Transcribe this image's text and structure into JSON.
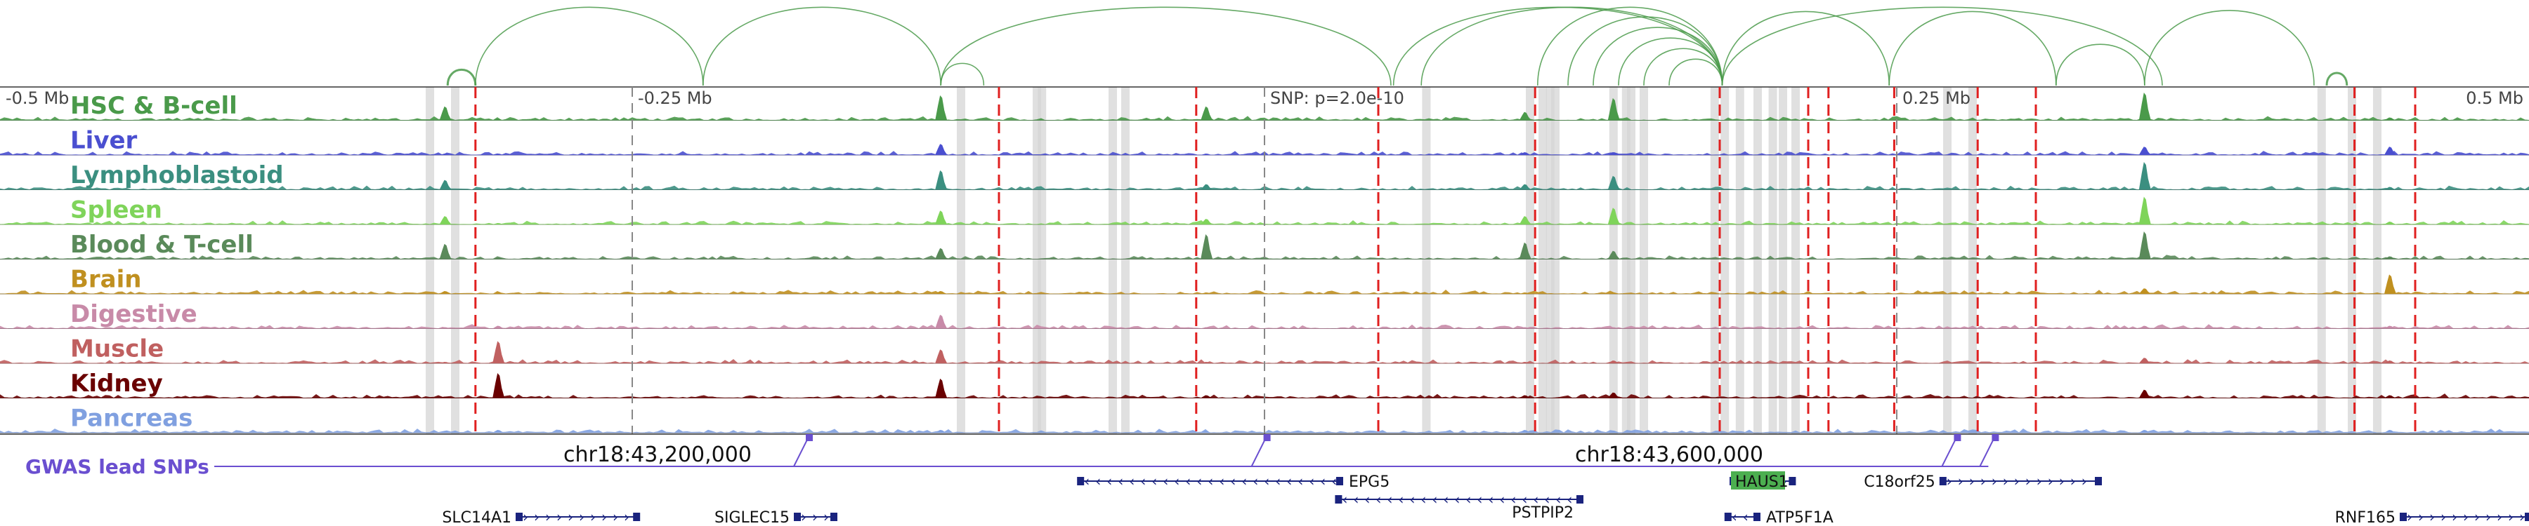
{
  "chart_data": {
    "type": "area",
    "region": {
      "chrom": "chr18",
      "start": 42940000,
      "end": 43940000
    },
    "scale_ticks": [
      {
        "pos": 42940000,
        "label": "-0.5 Mb"
      },
      {
        "pos": 43190000,
        "label": "-0.25 Mb"
      },
      {
        "pos": 43440000,
        "label": "SNP: p=2.0e-10"
      },
      {
        "pos": 43690000,
        "label": "0.25 Mb"
      },
      {
        "pos": 43940000,
        "label": "0.5 Mb"
      }
    ],
    "coord_labels": [
      {
        "pos": 43200000,
        "label": "chr18:43,200,000"
      },
      {
        "pos": 43600000,
        "label": "chr18:43,600,000"
      }
    ],
    "tracks": [
      {
        "name": "HSC & B-cell",
        "color": "#4a9a4a"
      },
      {
        "name": "Liver",
        "color": "#4a4fd0"
      },
      {
        "name": "Lymphoblastoid",
        "color": "#3b8f80"
      },
      {
        "name": "Spleen",
        "color": "#7fd45a"
      },
      {
        "name": "Blood & T-cell",
        "color": "#5a8a5a"
      },
      {
        "name": "Brain",
        "color": "#c09020"
      },
      {
        "name": "Digestive",
        "color": "#c88aa8"
      },
      {
        "name": "Muscle",
        "color": "#c06060"
      },
      {
        "name": "Kidney",
        "color": "#6a0000"
      },
      {
        "name": "Pancreas",
        "color": "#80a0e0"
      }
    ],
    "highlight_columns": [
      43110000,
      43120000,
      43320000,
      43350000,
      43352000,
      43380000,
      43385000,
      43504000,
      43545000,
      43550000,
      43553000,
      43555000,
      43578000,
      43583000,
      43585000,
      43590000,
      43618000,
      43622000,
      43628000,
      43635000,
      43641000,
      43645000,
      43650000,
      43710000,
      43720000,
      43858000,
      43870000,
      43880000
    ],
    "red_dashed_lines": [
      43128000,
      43335000,
      43413000,
      43485000,
      43547000,
      43620000,
      43655000,
      43663000,
      43689000,
      43722000,
      43745000,
      43871000,
      43895000
    ],
    "gray_dashed_lines": [
      43190000,
      43440000,
      43690000
    ],
    "peaks": [
      {
        "pos": 43116000,
        "h": [
          0.5,
          0.05,
          0.35,
          0.3,
          0.55,
          0.1,
          0.05,
          0.05,
          0.05,
          0.05
        ]
      },
      {
        "pos": 43137000,
        "h": [
          0.05,
          0.05,
          0.05,
          0.05,
          0.05,
          0.05,
          0.1,
          0.8,
          0.9,
          0.1
        ]
      },
      {
        "pos": 43312000,
        "h": [
          0.9,
          0.4,
          0.7,
          0.5,
          0.4,
          0.1,
          0.5,
          0.5,
          0.7,
          0.1
        ]
      },
      {
        "pos": 43417000,
        "h": [
          0.5,
          0.05,
          0.2,
          0.2,
          0.9,
          0.05,
          0.05,
          0.05,
          0.1,
          0.05
        ]
      },
      {
        "pos": 43543000,
        "h": [
          0.3,
          0.1,
          0.2,
          0.3,
          0.6,
          0.05,
          0.05,
          0.05,
          0.1,
          0.1
        ]
      },
      {
        "pos": 43578000,
        "h": [
          0.8,
          0.1,
          0.5,
          0.6,
          0.3,
          0.05,
          0.05,
          0.1,
          0.2,
          0.05
        ]
      },
      {
        "pos": 43788000,
        "h": [
          1.0,
          0.3,
          1.0,
          1.0,
          1.0,
          0.2,
          0.1,
          0.2,
          0.3,
          0.1
        ]
      },
      {
        "pos": 43885000,
        "h": [
          0.1,
          0.3,
          0.1,
          0.1,
          0.1,
          0.7,
          0.1,
          0.1,
          0.1,
          0.1
        ]
      }
    ],
    "arcs": [
      {
        "a": 43117000,
        "b": 43128000
      },
      {
        "a": 43128000,
        "b": 43218000
      },
      {
        "a": 43218000,
        "b": 43312000
      },
      {
        "a": 43312000,
        "b": 43490000
      },
      {
        "a": 43312000,
        "b": 43329000
      },
      {
        "a": 43491000,
        "b": 43621000
      },
      {
        "a": 43502000,
        "b": 43621000
      },
      {
        "a": 43548000,
        "b": 43621000
      },
      {
        "a": 43560000,
        "b": 43621000
      },
      {
        "a": 43570000,
        "b": 43621000
      },
      {
        "a": 43580000,
        "b": 43621000
      },
      {
        "a": 43590000,
        "b": 43621000
      },
      {
        "a": 43600000,
        "b": 43621000
      },
      {
        "a": 43621000,
        "b": 43795000
      },
      {
        "a": 43621000,
        "b": 43687000
      },
      {
        "a": 43687000,
        "b": 43753000
      },
      {
        "a": 43753000,
        "b": 43788000
      },
      {
        "a": 43788000,
        "b": 43855000
      },
      {
        "a": 43860000,
        "b": 43868000
      }
    ],
    "gwas": {
      "label": "GWAS lead SNPs",
      "color": "#6a4fd0",
      "snps": [
        43260000,
        43441000,
        43714000,
        43729000
      ]
    },
    "genes": [
      {
        "name": "EPG5",
        "start": 43367000,
        "end": 43470000,
        "strand": "-",
        "row": 0,
        "label_side": "right"
      },
      {
        "name": "HAUS1",
        "start": 43625000,
        "end": 43649000,
        "strand": "+",
        "row": 0,
        "label_side": "inside",
        "highlight": true
      },
      {
        "name": "C18orf25",
        "start": 43708000,
        "end": 43770000,
        "strand": "+",
        "row": 0,
        "label_side": "left"
      },
      {
        "name": "PSTPIP2",
        "start": 43469000,
        "end": 43565000,
        "strand": "-",
        "row": 1,
        "label_side": "right-below"
      },
      {
        "name": "SLC14A1",
        "start": 43145000,
        "end": 43192000,
        "strand": "+",
        "row": 2,
        "label_side": "left"
      },
      {
        "name": "SIGLEC15",
        "start": 43255000,
        "end": 43270000,
        "strand": "+",
        "row": 2,
        "label_side": "left"
      },
      {
        "name": "ATP5F1A",
        "start": 43623000,
        "end": 43635000,
        "strand": "-",
        "row": 2,
        "label_side": "right"
      },
      {
        "name": "RNF165",
        "start": 43890000,
        "end": 43940000,
        "strand": "+",
        "row": 2,
        "label_side": "left"
      }
    ]
  }
}
